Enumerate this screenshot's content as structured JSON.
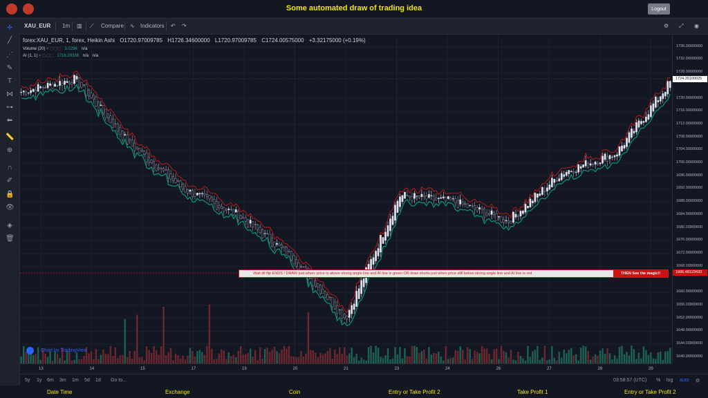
{
  "app": {
    "title": "Some automated draw of trading idea",
    "logout": "Logout"
  },
  "toolbar": {
    "symbol": "XAU_EUR",
    "interval": "1m",
    "compare": "Compare",
    "indicators": "Indicators"
  },
  "legend": {
    "symbol": "forex:XAU_EUR, 1, forex, Heikin Ashi",
    "open": "O1720.97009785",
    "high": "H1726.34600000",
    "low": "L1720.97009785",
    "close": "C1724.00575000",
    "change": "+3.32175000 (+0.19%)",
    "volume_label": "Volume (20)",
    "volume_value": "3.029K",
    "volume_na": "n/a",
    "ai_label": "AI (1, 1)",
    "ai_value": "1718.29338",
    "ai_na1": "n/a",
    "ai_na2": "n/a"
  },
  "price_scale": {
    "labels": [
      "1736.00000000",
      "1732.00000000",
      "1728.00000000",
      "1720.00000000",
      "1716.00000000",
      "1712.00000000",
      "1708.00000000",
      "1704.00000000",
      "1700.00000000",
      "1696.00000000",
      "1692.00000000",
      "1688.00000000",
      "1684.00000000",
      "1680.00000000",
      "1676.00000000",
      "1672.00000000",
      "1668.00000000",
      "1660.00000000",
      "1656.00000000",
      "1652.00000000",
      "1648.00000000",
      "1644.00000000",
      "1640.00000000"
    ],
    "current_price": "1724.35100025",
    "line_price": "1666.48123433",
    "accent_color": "#cc1111"
  },
  "time_axis": [
    "13",
    "14",
    "15",
    "17",
    "19",
    "20",
    "21",
    "23",
    "24",
    "26",
    "27",
    "28",
    "29"
  ],
  "banner": {
    "part1": "Wait till flip ENDS  !   DRAW just when:  price is above strong angle line and AI line is green        OR        draw shorts just when price still below strong angle line and AI line is red",
    "part2": "THEN See the magic!!"
  },
  "watermark": "Chart by TradingView",
  "bottom": {
    "ranges": [
      "5y",
      "1y",
      "6m",
      "3m",
      "1m",
      "5d",
      "1d"
    ],
    "goto": "Go to...",
    "time": "03:58:57 (UTC)",
    "percent": "%",
    "log": "log",
    "auto": "auto"
  },
  "footer": [
    "Date Time",
    "Exchange",
    "Coin",
    "Entry or Take Profit 2",
    "Take Profit 1",
    "Entry or Take Profit 2"
  ],
  "chart_data": {
    "type": "candlestick",
    "title": "",
    "xlabel": "",
    "ylabel": "",
    "ylim": [
      1638,
      1740
    ],
    "x_categories": [
      "13",
      "14",
      "15",
      "17",
      "19",
      "20",
      "21",
      "23",
      "24",
      "26",
      "27",
      "28",
      "29"
    ],
    "close_trend": [
      1722,
      1726,
      1706,
      1692,
      1684,
      1671,
      1652,
      1690,
      1688,
      1682,
      1697,
      1703,
      1725
    ],
    "strong_angle_line_color": "#089981",
    "ai_line_color": "#b71c1c"
  }
}
